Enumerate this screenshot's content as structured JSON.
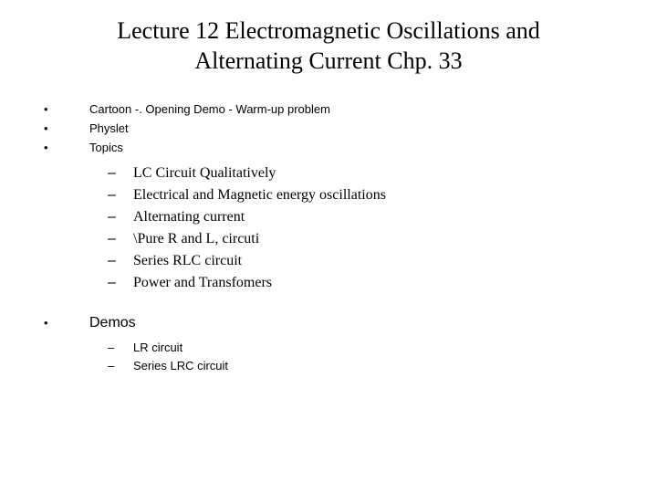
{
  "title_line1": "Lecture 12 Electromagnetic Oscillations and",
  "title_line2": "Alternating Current Chp. 33",
  "colors": {
    "background": "#ffffff",
    "text": "#000000"
  },
  "first_block": {
    "items": [
      "Cartoon -. Opening Demo - Warm-up problem",
      "Physlet",
      "Topics"
    ],
    "subitems": [
      "LC Circuit Qualitatively",
      "Electrical and Magnetic energy oscillations",
      "Alternating current",
      "\\Pure R and L, circuti",
      "Series RLC circuit",
      "Power and Transfomers"
    ]
  },
  "second_block": {
    "items": [
      "Demos"
    ],
    "subitems": [
      "LR circuit",
      "Series LRC circuit"
    ]
  }
}
